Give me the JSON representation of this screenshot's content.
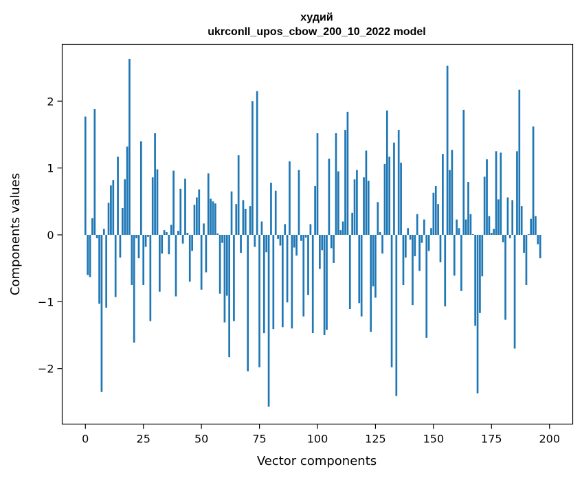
{
  "chart_data": {
    "type": "bar",
    "title": "худий",
    "subtitle": "ukrconll_upos_cbow_200_10_2022 model",
    "xlabel": "Vector components",
    "ylabel": "Components values",
    "xlim": [
      -10,
      210
    ],
    "ylim": [
      -2.83,
      2.85
    ],
    "xticks": [
      0,
      25,
      50,
      75,
      100,
      125,
      150,
      175,
      200
    ],
    "yticks": [
      -2,
      -1,
      0,
      1,
      2
    ],
    "ytick_labels": [
      "−2",
      "−1",
      "0",
      "1",
      "2"
    ],
    "bar_color": "#1f77b4",
    "grid": false,
    "values": [
      1.77,
      -0.6,
      -0.63,
      0.25,
      1.88,
      -0.05,
      -1.03,
      -2.35,
      0.09,
      -1.09,
      0.48,
      0.74,
      0.82,
      -0.93,
      1.17,
      -0.34,
      0.4,
      0.83,
      1.32,
      2.63,
      -0.75,
      -1.61,
      -0.05,
      -0.35,
      1.4,
      -0.75,
      -0.18,
      -0.03,
      -1.29,
      0.86,
      1.52,
      0.98,
      -0.85,
      -0.28,
      0.07,
      0.04,
      -0.29,
      0.15,
      0.96,
      -0.92,
      0.06,
      0.69,
      -0.13,
      0.84,
      0.03,
      -0.7,
      -0.24,
      0.45,
      0.56,
      0.68,
      -0.82,
      0.17,
      -0.56,
      0.92,
      0.54,
      0.5,
      0.47,
      0.02,
      -0.88,
      -0.12,
      -1.31,
      -0.91,
      -1.83,
      0.65,
      -1.29,
      0.46,
      1.19,
      -0.27,
      0.52,
      0.39,
      -2.04,
      0.43,
      2.0,
      -0.18,
      2.15,
      -1.98,
      0.2,
      -1.47,
      -0.26,
      -2.57,
      0.78,
      -1.41,
      0.66,
      -0.06,
      -0.16,
      -1.38,
      0.16,
      -1.01,
      1.1,
      -1.4,
      -0.19,
      -0.31,
      0.97,
      -0.09,
      -1.22,
      -0.04,
      -0.9,
      0.16,
      -1.47,
      0.73,
      1.52,
      -0.51,
      -0.23,
      -1.5,
      -1.42,
      1.14,
      -0.2,
      -0.42,
      1.52,
      0.95,
      0.07,
      0.2,
      1.57,
      1.84,
      -1.11,
      0.33,
      0.83,
      0.97,
      -1.02,
      -1.22,
      0.86,
      1.26,
      0.81,
      -1.45,
      -0.77,
      -0.94,
      0.49,
      0.04,
      -0.28,
      1.06,
      1.86,
      1.17,
      -1.98,
      1.38,
      -2.41,
      1.57,
      1.08,
      -0.75,
      -0.34,
      0.1,
      -0.07,
      -1.05,
      -0.32,
      0.31,
      -0.54,
      -0.12,
      0.23,
      -1.54,
      -0.24,
      0.1,
      0.63,
      0.73,
      0.46,
      -0.41,
      1.21,
      -1.07,
      2.53,
      0.97,
      1.27,
      -0.61,
      0.23,
      0.1,
      -0.84,
      1.87,
      0.23,
      0.79,
      0.31,
      0.01,
      -1.36,
      -2.37,
      -1.17,
      -0.62,
      0.87,
      1.13,
      0.28,
      0.03,
      0.09,
      1.25,
      0.53,
      1.23,
      -0.11,
      -1.27,
      0.56,
      -0.05,
      0.52,
      -1.7,
      1.25,
      2.17,
      0.43,
      -0.27,
      -0.75,
      0.01,
      0.24,
      1.62,
      0.28,
      -0.14,
      -0.35
    ]
  }
}
